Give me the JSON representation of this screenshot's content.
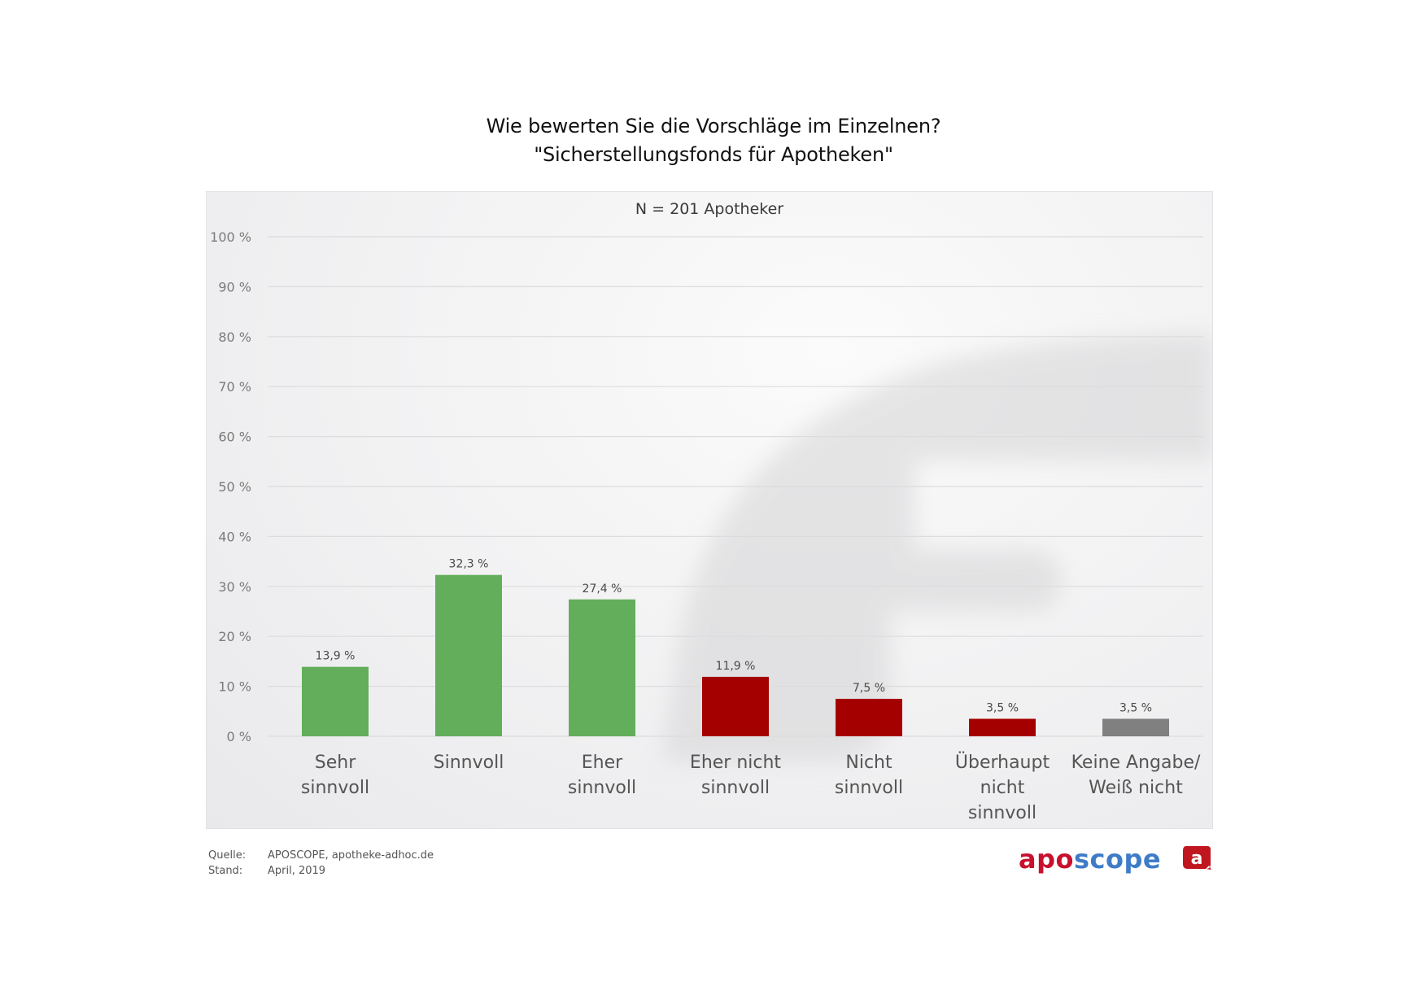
{
  "title": {
    "line1": "Wie bewerten Sie die Vorschläge im Einzelnen?",
    "line2": "\"Sicherstellungsfonds für Apotheken\""
  },
  "sample": "N = 201 Apotheker",
  "footer": {
    "source_key": "Quelle:",
    "source_value": "APOSCOPE, apotheke-adhoc.de",
    "date_key": "Stand:",
    "date_value": "April, 2019"
  },
  "logo": {
    "part1": "apo",
    "part2": "scope",
    "badge_letter": "a",
    "color_red": "#c8102e",
    "color_blue": "#3f7cc8"
  },
  "chart_data": {
    "type": "bar",
    "title": "Wie bewerten Sie die Vorschläge im Einzelnen? \"Sicherstellungsfonds für Apotheken\"",
    "subtitle": "N = 201 Apotheker",
    "xlabel": "",
    "ylabel": "",
    "ylim": [
      0,
      100
    ],
    "yticks": [
      0,
      10,
      20,
      30,
      40,
      50,
      60,
      70,
      80,
      90,
      100
    ],
    "ytick_labels": [
      "0 %",
      "10 %",
      "20 %",
      "30 %",
      "40 %",
      "50 %",
      "60 %",
      "70 %",
      "80 %",
      "90 %",
      "100 %"
    ],
    "grid": true,
    "legend": "none",
    "categories": [
      [
        "Sehr",
        "sinnvoll"
      ],
      [
        "Sinnvoll"
      ],
      [
        "Eher",
        "sinnvoll"
      ],
      [
        "Eher nicht",
        "sinnvoll"
      ],
      [
        "Nicht",
        "sinnvoll"
      ],
      [
        "Überhaupt",
        "nicht",
        "sinnvoll"
      ],
      [
        "Keine Angabe/",
        "Weiß nicht"
      ]
    ],
    "values": [
      13.9,
      32.3,
      27.4,
      11.9,
      7.5,
      3.5,
      3.5
    ],
    "value_labels": [
      "13,9 %",
      "32,3 %",
      "27,4 %",
      "11,9 %",
      "7,5 %",
      "3,5 %",
      "3,5 %"
    ],
    "colors": [
      "#63ae5a",
      "#63ae5a",
      "#63ae5a",
      "#a50000",
      "#a50000",
      "#a50000",
      "#808080"
    ],
    "axis_text_color": "#7a7a7a",
    "category_text_color": "#555555",
    "gridline_color": "#dcdcde"
  }
}
